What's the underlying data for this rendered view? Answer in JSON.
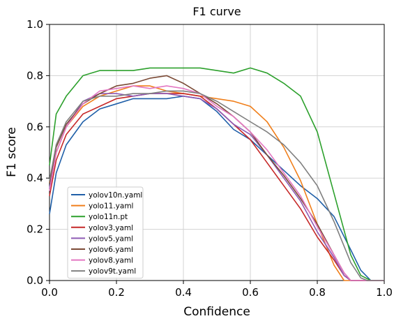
{
  "chart_data": {
    "type": "line",
    "title": "F1 curve",
    "xlabel": "Confidence",
    "ylabel": "F1 score",
    "xlim": [
      0.0,
      1.0
    ],
    "ylim": [
      0.0,
      1.0
    ],
    "xticks": [
      "0.0",
      "0.2",
      "0.4",
      "0.6",
      "0.8",
      "1.0"
    ],
    "yticks": [
      "0.0",
      "0.2",
      "0.4",
      "0.6",
      "0.8",
      "1.0"
    ],
    "grid": true,
    "legend_position": "lower-left",
    "series": [
      {
        "name": "yolov10n.yaml",
        "color": "#1f5fa8",
        "points": [
          [
            0,
            0.26
          ],
          [
            0.02,
            0.42
          ],
          [
            0.05,
            0.53
          ],
          [
            0.1,
            0.62
          ],
          [
            0.15,
            0.67
          ],
          [
            0.2,
            0.69
          ],
          [
            0.25,
            0.71
          ],
          [
            0.3,
            0.71
          ],
          [
            0.35,
            0.71
          ],
          [
            0.4,
            0.72
          ],
          [
            0.45,
            0.71
          ],
          [
            0.5,
            0.66
          ],
          [
            0.55,
            0.59
          ],
          [
            0.6,
            0.55
          ],
          [
            0.65,
            0.49
          ],
          [
            0.7,
            0.43
          ],
          [
            0.75,
            0.37
          ],
          [
            0.8,
            0.32
          ],
          [
            0.85,
            0.25
          ],
          [
            0.9,
            0.12
          ],
          [
            0.93,
            0.04
          ],
          [
            0.96,
            0.0
          ],
          [
            1.0,
            0.0
          ]
        ]
      },
      {
        "name": "yolo11.yaml",
        "color": "#f07f1b",
        "points": [
          [
            0,
            0.38
          ],
          [
            0.02,
            0.5
          ],
          [
            0.05,
            0.6
          ],
          [
            0.1,
            0.68
          ],
          [
            0.15,
            0.72
          ],
          [
            0.2,
            0.74
          ],
          [
            0.25,
            0.76
          ],
          [
            0.3,
            0.76
          ],
          [
            0.35,
            0.74
          ],
          [
            0.4,
            0.73
          ],
          [
            0.45,
            0.72
          ],
          [
            0.5,
            0.71
          ],
          [
            0.55,
            0.7
          ],
          [
            0.6,
            0.68
          ],
          [
            0.65,
            0.62
          ],
          [
            0.7,
            0.52
          ],
          [
            0.75,
            0.39
          ],
          [
            0.8,
            0.22
          ],
          [
            0.85,
            0.06
          ],
          [
            0.88,
            0.0
          ],
          [
            1.0,
            0.0
          ]
        ]
      },
      {
        "name": "yolo11n.pt",
        "color": "#2ca02c",
        "points": [
          [
            0,
            0.45
          ],
          [
            0.02,
            0.65
          ],
          [
            0.05,
            0.72
          ],
          [
            0.1,
            0.8
          ],
          [
            0.15,
            0.82
          ],
          [
            0.2,
            0.82
          ],
          [
            0.25,
            0.82
          ],
          [
            0.3,
            0.83
          ],
          [
            0.35,
            0.83
          ],
          [
            0.4,
            0.83
          ],
          [
            0.45,
            0.83
          ],
          [
            0.5,
            0.82
          ],
          [
            0.55,
            0.81
          ],
          [
            0.6,
            0.83
          ],
          [
            0.65,
            0.81
          ],
          [
            0.7,
            0.77
          ],
          [
            0.75,
            0.72
          ],
          [
            0.8,
            0.58
          ],
          [
            0.85,
            0.34
          ],
          [
            0.9,
            0.1
          ],
          [
            0.93,
            0.02
          ],
          [
            0.96,
            0.0
          ],
          [
            1.0,
            0.0
          ]
        ]
      },
      {
        "name": "yolov3.yaml",
        "color": "#c62828",
        "points": [
          [
            0,
            0.33
          ],
          [
            0.02,
            0.47
          ],
          [
            0.05,
            0.57
          ],
          [
            0.1,
            0.65
          ],
          [
            0.15,
            0.68
          ],
          [
            0.2,
            0.71
          ],
          [
            0.25,
            0.72
          ],
          [
            0.3,
            0.73
          ],
          [
            0.35,
            0.73
          ],
          [
            0.4,
            0.73
          ],
          [
            0.45,
            0.72
          ],
          [
            0.5,
            0.67
          ],
          [
            0.55,
            0.61
          ],
          [
            0.6,
            0.55
          ],
          [
            0.65,
            0.46
          ],
          [
            0.7,
            0.37
          ],
          [
            0.75,
            0.28
          ],
          [
            0.8,
            0.17
          ],
          [
            0.85,
            0.08
          ],
          [
            0.88,
            0.02
          ],
          [
            0.9,
            0.0
          ],
          [
            1.0,
            0.0
          ]
        ]
      },
      {
        "name": "yolov5.yaml",
        "color": "#8e5ab5",
        "points": [
          [
            0,
            0.36
          ],
          [
            0.02,
            0.5
          ],
          [
            0.05,
            0.6
          ],
          [
            0.1,
            0.7
          ],
          [
            0.15,
            0.73
          ],
          [
            0.2,
            0.73
          ],
          [
            0.25,
            0.72
          ],
          [
            0.3,
            0.73
          ],
          [
            0.35,
            0.73
          ],
          [
            0.4,
            0.72
          ],
          [
            0.45,
            0.71
          ],
          [
            0.5,
            0.67
          ],
          [
            0.55,
            0.61
          ],
          [
            0.6,
            0.57
          ],
          [
            0.65,
            0.49
          ],
          [
            0.7,
            0.4
          ],
          [
            0.75,
            0.31
          ],
          [
            0.8,
            0.19
          ],
          [
            0.85,
            0.09
          ],
          [
            0.88,
            0.02
          ],
          [
            0.9,
            0.0
          ],
          [
            1.0,
            0.0
          ]
        ]
      },
      {
        "name": "yolov6.yaml",
        "color": "#7b4a36",
        "points": [
          [
            0,
            0.38
          ],
          [
            0.02,
            0.52
          ],
          [
            0.05,
            0.61
          ],
          [
            0.1,
            0.69
          ],
          [
            0.15,
            0.73
          ],
          [
            0.2,
            0.76
          ],
          [
            0.25,
            0.77
          ],
          [
            0.3,
            0.79
          ],
          [
            0.35,
            0.8
          ],
          [
            0.4,
            0.77
          ],
          [
            0.45,
            0.73
          ],
          [
            0.5,
            0.69
          ],
          [
            0.55,
            0.64
          ],
          [
            0.6,
            0.58
          ],
          [
            0.65,
            0.49
          ],
          [
            0.7,
            0.41
          ],
          [
            0.75,
            0.32
          ],
          [
            0.8,
            0.22
          ],
          [
            0.85,
            0.1
          ],
          [
            0.88,
            0.03
          ],
          [
            0.9,
            0.0
          ],
          [
            1.0,
            0.0
          ]
        ]
      },
      {
        "name": "yolov8.yaml",
        "color": "#e377c2",
        "points": [
          [
            0,
            0.35
          ],
          [
            0.02,
            0.5
          ],
          [
            0.05,
            0.6
          ],
          [
            0.1,
            0.69
          ],
          [
            0.15,
            0.74
          ],
          [
            0.2,
            0.75
          ],
          [
            0.25,
            0.76
          ],
          [
            0.3,
            0.75
          ],
          [
            0.35,
            0.76
          ],
          [
            0.4,
            0.75
          ],
          [
            0.45,
            0.73
          ],
          [
            0.5,
            0.68
          ],
          [
            0.55,
            0.64
          ],
          [
            0.6,
            0.58
          ],
          [
            0.65,
            0.51
          ],
          [
            0.7,
            0.42
          ],
          [
            0.75,
            0.33
          ],
          [
            0.8,
            0.21
          ],
          [
            0.85,
            0.1
          ],
          [
            0.88,
            0.03
          ],
          [
            0.9,
            0.0
          ],
          [
            1.0,
            0.0
          ]
        ]
      },
      {
        "name": "yolov9t.yaml",
        "color": "#7f7f7f",
        "points": [
          [
            0,
            0.39
          ],
          [
            0.02,
            0.53
          ],
          [
            0.05,
            0.62
          ],
          [
            0.1,
            0.7
          ],
          [
            0.15,
            0.72
          ],
          [
            0.2,
            0.72
          ],
          [
            0.25,
            0.73
          ],
          [
            0.3,
            0.73
          ],
          [
            0.35,
            0.74
          ],
          [
            0.4,
            0.74
          ],
          [
            0.45,
            0.73
          ],
          [
            0.5,
            0.7
          ],
          [
            0.55,
            0.66
          ],
          [
            0.6,
            0.62
          ],
          [
            0.65,
            0.58
          ],
          [
            0.7,
            0.53
          ],
          [
            0.75,
            0.46
          ],
          [
            0.8,
            0.37
          ],
          [
            0.85,
            0.23
          ],
          [
            0.9,
            0.07
          ],
          [
            0.93,
            0.01
          ],
          [
            0.95,
            0.0
          ],
          [
            1.0,
            0.0
          ]
        ]
      }
    ]
  }
}
